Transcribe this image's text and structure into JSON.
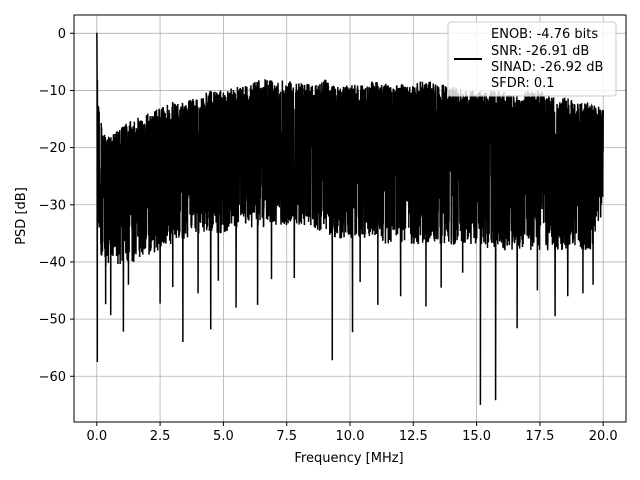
{
  "chart_data": {
    "type": "line",
    "title": "",
    "xlabel": "Frequency [MHz]",
    "ylabel": "PSD [dB]",
    "xlim": [
      -0.9,
      20.9
    ],
    "ylim": [
      -68.0,
      3.2
    ],
    "xticks": [
      0.0,
      2.5,
      5.0,
      7.5,
      10.0,
      12.5,
      15.0,
      17.5,
      20.0
    ],
    "xtick_labels": [
      "0.0",
      "2.5",
      "5.0",
      "7.5",
      "10.0",
      "12.5",
      "15.0",
      "17.5",
      "20.0"
    ],
    "yticks": [
      0,
      -10,
      -20,
      -30,
      -40,
      -50,
      -60
    ],
    "ytick_labels": [
      "0",
      "−10",
      "−20",
      "−30",
      "−40",
      "−50",
      "−60"
    ],
    "grid": true,
    "line_color": "#000000",
    "legend": {
      "placement": "top-right",
      "entries": [
        "ENOB: -4.76 bits",
        "SNR: -26.91 dB",
        "SINAD: -26.92 dB",
        "SFDR: 0.1"
      ]
    },
    "series": [
      {
        "x": [
          0.0,
          0.05,
          0.1,
          0.2,
          0.3,
          0.5,
          0.8,
          1.0,
          1.5,
          2.0,
          2.5,
          3.0,
          3.5,
          4.0,
          4.5,
          5.0,
          5.5,
          6.0,
          6.5,
          7.0,
          7.5,
          8.0,
          8.5,
          9.0,
          9.5,
          10.0,
          10.5,
          11.0,
          11.5,
          12.0,
          12.5,
          13.0,
          13.5,
          14.0,
          14.5,
          15.0,
          15.5,
          16.0,
          16.5,
          17.0,
          17.5,
          18.0,
          18.5,
          19.0,
          19.5,
          20.0
        ],
        "upper": [
          0.1,
          -11,
          -13,
          -16,
          -17,
          -18,
          -17,
          -16,
          -15,
          -14,
          -13,
          -12,
          -12,
          -11,
          -10,
          -10,
          -9,
          -9,
          -8,
          -8,
          -8,
          -8,
          -9,
          -8,
          -9,
          -9,
          -9,
          -8,
          -9,
          -9,
          -9,
          -8,
          -9,
          -9,
          -10,
          -10,
          -10,
          -10,
          -11,
          -10,
          -10,
          -11,
          -11,
          -12,
          -12,
          -13
        ],
        "lower": [
          -20,
          -33,
          -36,
          -40,
          -41,
          -40,
          -41,
          -40,
          -40,
          -39,
          -38,
          -37,
          -36,
          -35,
          -35,
          -35,
          -34,
          -34,
          -34,
          -34,
          -34,
          -34,
          -34,
          -35,
          -36,
          -36,
          -36,
          -36,
          -37,
          -37,
          -37,
          -37,
          -37,
          -37,
          -37,
          -37,
          -38,
          -38,
          -38,
          -38,
          -38,
          -38,
          -38,
          -38,
          -38,
          -31
        ],
        "dips": [
          {
            "x": 0.02,
            "y": -57.5
          },
          {
            "x": 0.35,
            "y": -47.4
          },
          {
            "x": 0.55,
            "y": -49.3
          },
          {
            "x": 1.05,
            "y": -52.2
          },
          {
            "x": 1.25,
            "y": -44.0
          },
          {
            "x": 2.5,
            "y": -47.3
          },
          {
            "x": 3.0,
            "y": -44.4
          },
          {
            "x": 3.4,
            "y": -54.0
          },
          {
            "x": 4.0,
            "y": -45.5
          },
          {
            "x": 4.5,
            "y": -51.8
          },
          {
            "x": 4.8,
            "y": -43.3
          },
          {
            "x": 5.5,
            "y": -48.0
          },
          {
            "x": 6.35,
            "y": -47.5
          },
          {
            "x": 6.9,
            "y": -43.0
          },
          {
            "x": 7.8,
            "y": -42.8
          },
          {
            "x": 9.3,
            "y": -57.2
          },
          {
            "x": 10.1,
            "y": -52.3
          },
          {
            "x": 10.4,
            "y": -43.5
          },
          {
            "x": 11.1,
            "y": -47.5
          },
          {
            "x": 12.0,
            "y": -46.0
          },
          {
            "x": 13.0,
            "y": -47.8
          },
          {
            "x": 13.6,
            "y": -44.5
          },
          {
            "x": 14.45,
            "y": -41.9
          },
          {
            "x": 15.15,
            "y": -65.0
          },
          {
            "x": 15.75,
            "y": -64.2
          },
          {
            "x": 16.6,
            "y": -51.6
          },
          {
            "x": 17.4,
            "y": -45.0
          },
          {
            "x": 18.1,
            "y": -49.5
          },
          {
            "x": 18.6,
            "y": -46.0
          },
          {
            "x": 19.2,
            "y": -45.5
          },
          {
            "x": 19.6,
            "y": -44.0
          }
        ]
      }
    ]
  }
}
